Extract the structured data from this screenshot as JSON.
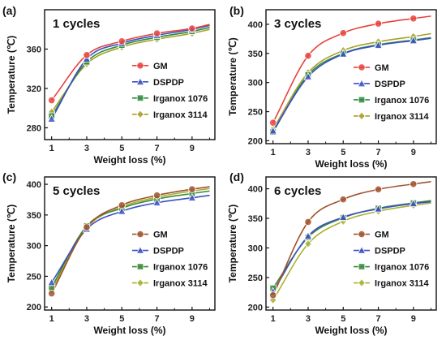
{
  "chart_data": [
    {
      "type": "line",
      "panel_label": "(a)",
      "title": "1 cycles",
      "xlabel": "Weight loss (%)",
      "ylabel": "Temperature (℃)",
      "xlim": [
        0.6,
        10.3
      ],
      "ylim": [
        268,
        400
      ],
      "xticks": [
        "1",
        "3",
        "5",
        "7",
        "9"
      ],
      "yticks": [
        "280",
        "320",
        "360"
      ],
      "legend": "center-right",
      "x": [
        1,
        3,
        5,
        7,
        9,
        10
      ],
      "series": [
        {
          "name": "GM",
          "color": "#e8423c",
          "values": [
            308,
            354,
            368,
            376,
            381,
            385
          ]
        },
        {
          "name": "DSPDP",
          "color": "#3b4fc4",
          "values": [
            289,
            350,
            366,
            374,
            380,
            384
          ]
        },
        {
          "name": "Irganox 1076",
          "color": "#2e8b3e",
          "values": [
            292,
            347,
            364,
            372,
            378,
            382
          ]
        },
        {
          "name": "Irganox 3114",
          "color": "#a8a02a",
          "values": [
            296,
            345,
            362,
            370,
            376,
            380
          ]
        }
      ]
    },
    {
      "type": "line",
      "panel_label": "(b)",
      "title": "3 cycles",
      "xlabel": "Weight loss (%)",
      "ylabel": "Temperature (℃)",
      "xlim": [
        0.6,
        10.3
      ],
      "ylim": [
        195,
        425
      ],
      "xticks": [
        "1",
        "3",
        "5",
        "7",
        "9"
      ],
      "yticks": [
        "200",
        "250",
        "300",
        "350",
        "400"
      ],
      "legend": "center-right",
      "x": [
        1,
        3,
        5,
        7,
        9,
        10
      ],
      "series": [
        {
          "name": "GM",
          "color": "#e8423c",
          "values": [
            231,
            346,
            385,
            401,
            410,
            414
          ]
        },
        {
          "name": "DSPDP",
          "color": "#3b4fc4",
          "values": [
            217,
            310,
            349,
            364,
            372,
            376
          ]
        },
        {
          "name": "Irganox 1076",
          "color": "#2e8b3e",
          "values": [
            215,
            313,
            350,
            365,
            373,
            377
          ]
        },
        {
          "name": "Irganox 3114",
          "color": "#a8a02a",
          "values": [
            220,
            317,
            355,
            370,
            379,
            384
          ]
        }
      ]
    },
    {
      "type": "line",
      "panel_label": "(c)",
      "title": "5 cycles",
      "xlabel": "Weight loss (%)",
      "ylabel": "Temperature (℃)",
      "xlim": [
        0.6,
        10.3
      ],
      "ylim": [
        195,
        412
      ],
      "xticks": [
        "1",
        "3",
        "5",
        "7",
        "9"
      ],
      "yticks": [
        "200",
        "250",
        "300",
        "350",
        "400"
      ],
      "legend": "center-right",
      "x": [
        1,
        3,
        5,
        7,
        9,
        10
      ],
      "series": [
        {
          "name": "GM",
          "color": "#a0522d",
          "values": [
            222,
            330,
            366,
            382,
            392,
            396
          ]
        },
        {
          "name": "DSPDP",
          "color": "#3b4fc4",
          "values": [
            240,
            327,
            356,
            370,
            378,
            382
          ]
        },
        {
          "name": "Irganox 1076",
          "color": "#3a8a3a",
          "values": [
            232,
            332,
            361,
            376,
            385,
            389
          ]
        },
        {
          "name": "Irganox 3114",
          "color": "#a8b030",
          "values": [
            228,
            329,
            363,
            379,
            389,
            393
          ]
        }
      ]
    },
    {
      "type": "line",
      "panel_label": "(d)",
      "title": "6 cycles",
      "xlabel": "Weight loss (%)",
      "ylabel": "Temperature (℃)",
      "xlim": [
        0.6,
        10.3
      ],
      "ylim": [
        195,
        420
      ],
      "xticks": [
        "1",
        "3",
        "5",
        "7",
        "9"
      ],
      "yticks": [
        "200",
        "250",
        "300",
        "350",
        "400"
      ],
      "legend": "center-right",
      "x": [
        1,
        3,
        5,
        7,
        9,
        10
      ],
      "series": [
        {
          "name": "GM",
          "color": "#a0522d",
          "values": [
            220,
            344,
            382,
            399,
            408,
            412
          ]
        },
        {
          "name": "DSPDP",
          "color": "#3b4fc4",
          "values": [
            226,
            320,
            352,
            366,
            375,
            378
          ]
        },
        {
          "name": "Irganox 1076",
          "color": "#3a8a3a",
          "values": [
            232,
            318,
            351,
            367,
            376,
            380
          ]
        },
        {
          "name": "Irganox 3114",
          "color": "#a8b030",
          "values": [
            212,
            307,
            345,
            362,
            372,
            376
          ]
        }
      ]
    }
  ]
}
